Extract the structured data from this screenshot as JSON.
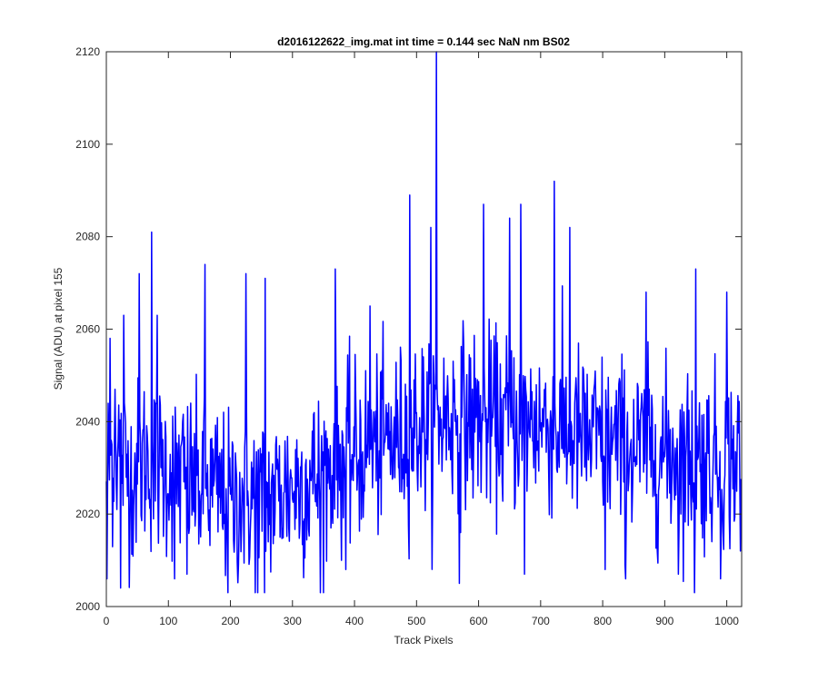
{
  "chart_data": {
    "type": "line",
    "title": "d2016122622_img.mat int time = 0.144 sec  NaN nm BS02",
    "xlabel": "Track Pixels",
    "ylabel": "Signal (ADU) at pixel 155",
    "xlim": [
      0,
      1024
    ],
    "ylim": [
      2000,
      2120
    ],
    "xticks": [
      0,
      100,
      200,
      300,
      400,
      500,
      600,
      700,
      800,
      900,
      1000
    ],
    "yticks": [
      2000,
      2020,
      2040,
      2060,
      2080,
      2100,
      2120
    ],
    "grid": false,
    "line_color": "#0000ff",
    "series": [
      {
        "x": [
          0,
          20,
          40,
          60,
          80,
          100,
          120,
          140,
          160,
          180,
          200,
          220,
          240,
          260,
          280,
          300,
          320,
          340,
          360,
          380,
          400,
          420,
          440,
          460,
          480,
          500,
          520,
          540,
          560,
          580,
          600,
          620,
          640,
          660,
          680,
          700,
          720,
          740,
          760,
          780,
          800,
          820,
          840,
          860,
          880,
          900,
          920,
          940,
          960,
          980,
          1000,
          1024
        ],
        "values": [
          2030,
          2035,
          2028,
          2032,
          2030,
          2030,
          2028,
          2027,
          2025,
          2025,
          2022,
          2024,
          2024,
          2023,
          2025,
          2026,
          2027,
          2028,
          2030,
          2032,
          2033,
          2034,
          2035,
          2036,
          2037,
          2039,
          2040,
          2041,
          2041,
          2041,
          2040,
          2040,
          2040,
          2040,
          2040,
          2040,
          2039,
          2038,
          2037,
          2036,
          2036,
          2035,
          2034,
          2034,
          2034,
          2033,
          2033,
          2032,
          2032,
          2032,
          2032,
          2032
        ],
        "peak_points": [
          {
            "x": 1,
            "y": 2006
          },
          {
            "x": 6,
            "y": 2058
          },
          {
            "x": 14,
            "y": 2047
          },
          {
            "x": 23,
            "y": 2004
          },
          {
            "x": 28,
            "y": 2063
          },
          {
            "x": 53,
            "y": 2072
          },
          {
            "x": 73,
            "y": 2081
          },
          {
            "x": 82,
            "y": 2063
          },
          {
            "x": 110,
            "y": 2006
          },
          {
            "x": 130,
            "y": 2007
          },
          {
            "x": 159,
            "y": 2074
          },
          {
            "x": 196,
            "y": 2003
          },
          {
            "x": 225,
            "y": 2072
          },
          {
            "x": 240,
            "y": 2003
          },
          {
            "x": 255,
            "y": 2003
          },
          {
            "x": 256,
            "y": 2071
          },
          {
            "x": 345,
            "y": 2003
          },
          {
            "x": 369,
            "y": 2073
          },
          {
            "x": 386,
            "y": 2008
          },
          {
            "x": 425,
            "y": 2065
          },
          {
            "x": 489,
            "y": 2089
          },
          {
            "x": 523,
            "y": 2082
          },
          {
            "x": 532,
            "y": 2120
          },
          {
            "x": 569,
            "y": 2005
          },
          {
            "x": 608,
            "y": 2087
          },
          {
            "x": 650,
            "y": 2084
          },
          {
            "x": 668,
            "y": 2087
          },
          {
            "x": 674,
            "y": 2007
          },
          {
            "x": 722,
            "y": 2092
          },
          {
            "x": 747,
            "y": 2082
          },
          {
            "x": 804,
            "y": 2008
          },
          {
            "x": 837,
            "y": 2006
          },
          {
            "x": 870,
            "y": 2068
          },
          {
            "x": 922,
            "y": 2007
          },
          {
            "x": 948,
            "y": 2003
          },
          {
            "x": 950,
            "y": 2073
          },
          {
            "x": 990,
            "y": 2006
          },
          {
            "x": 1000,
            "y": 2068
          },
          {
            "x": 1022,
            "y": 2012
          }
        ]
      }
    ]
  }
}
